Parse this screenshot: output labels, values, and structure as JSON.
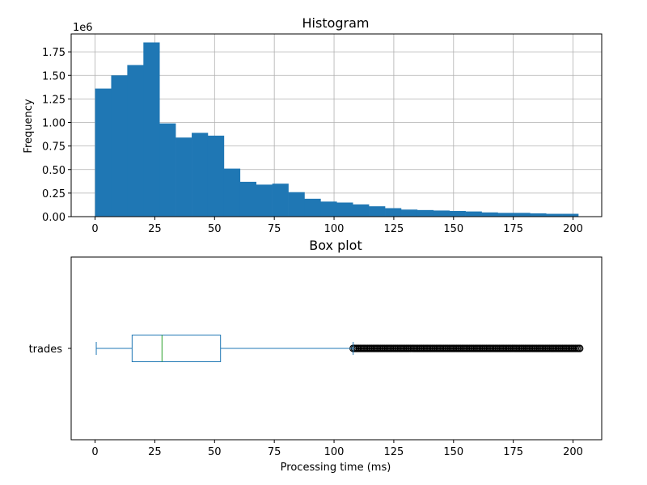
{
  "chart_data": [
    {
      "type": "bar",
      "title": "Histogram",
      "xlabel": "",
      "ylabel": "Frequency",
      "y_offset_label": "1e6",
      "grid": true,
      "bar_color": "#1f77b4",
      "xlim": [
        -10,
        212
      ],
      "ylim": [
        0,
        1.94
      ],
      "bin_width": 6.74,
      "x_start": 0,
      "values": [
        1.36,
        1.5,
        1.61,
        1.85,
        0.99,
        0.84,
        0.89,
        0.86,
        0.51,
        0.37,
        0.34,
        0.35,
        0.26,
        0.19,
        0.16,
        0.15,
        0.13,
        0.11,
        0.09,
        0.075,
        0.07,
        0.065,
        0.06,
        0.055,
        0.045,
        0.04,
        0.04,
        0.035,
        0.03,
        0.03
      ],
      "xticks": [
        0,
        25,
        50,
        75,
        100,
        125,
        150,
        175,
        200
      ],
      "xtick_labels": [
        "0",
        "25",
        "50",
        "75",
        "100",
        "125",
        "150",
        "175",
        "200"
      ],
      "yticks": [
        0,
        0.25,
        0.5,
        0.75,
        1.0,
        1.25,
        1.5,
        1.75
      ],
      "ytick_labels": [
        "0.00",
        "0.25",
        "0.50",
        "0.75",
        "1.00",
        "1.25",
        "1.50",
        "1.75"
      ]
    },
    {
      "type": "boxplot",
      "title": "Box plot",
      "xlabel": "Processing time (ms)",
      "orientation": "horizontal",
      "grid": false,
      "xlim": [
        -10,
        212
      ],
      "category": "trades",
      "whisker_low": 0.5,
      "q1": 15.5,
      "median": 28,
      "q3": 52.5,
      "whisker_high": 108,
      "outliers_range": [
        108,
        203
      ],
      "box_color": "#1f77b4",
      "median_color": "#2ca02c",
      "xticks": [
        0,
        25,
        50,
        75,
        100,
        125,
        150,
        175,
        200
      ],
      "xtick_labels": [
        "0",
        "25",
        "50",
        "75",
        "100",
        "125",
        "150",
        "175",
        "200"
      ]
    }
  ]
}
